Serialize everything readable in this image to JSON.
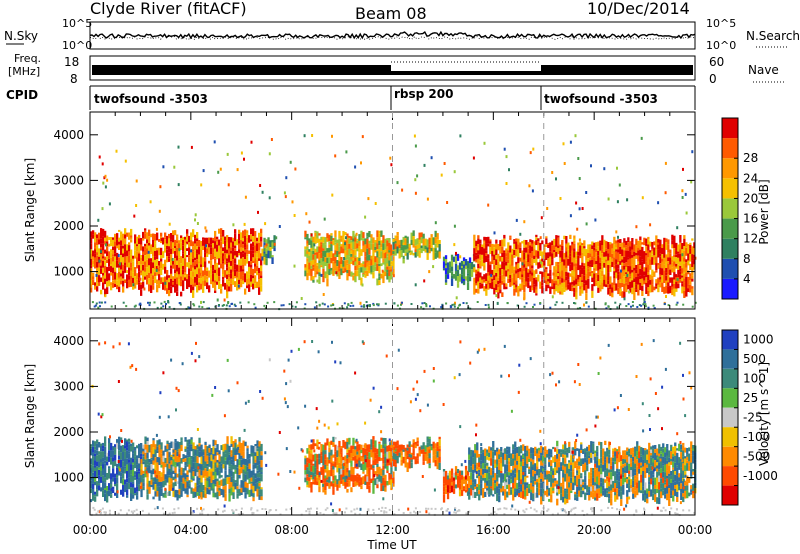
{
  "header": {
    "station": "Clyde River (fitACF)",
    "beam": "Beam 08",
    "date": "10/Dec/2014"
  },
  "noise_panel": {
    "left_label": "N.Sky",
    "right_label": "N.Search",
    "left_ticks": [
      "10^5",
      "10^0"
    ],
    "right_ticks": [
      "10^5",
      "10^0"
    ]
  },
  "freq_panel": {
    "left_label_1": "Freq.",
    "left_label_2": "[MHz]",
    "right_label": "Nave",
    "left_ticks": [
      "18",
      "8"
    ],
    "right_ticks": [
      "60",
      "0"
    ]
  },
  "cpid_panel": {
    "label": "CPID",
    "segments": [
      {
        "name": "twofsound -3503",
        "start_h": 0,
        "end_h": 12
      },
      {
        "name": "rbsp 200",
        "start_h": 12,
        "end_h": 18
      },
      {
        "name": "twofsound -3503",
        "start_h": 18,
        "end_h": 24
      }
    ]
  },
  "axes": {
    "xlabel": "Time UT",
    "x_ticks": [
      "00:00",
      "04:00",
      "08:00",
      "12:00",
      "16:00",
      "20:00",
      "00:00"
    ],
    "ylabel": "Slant Range [km]",
    "y_ticks": [
      "1000",
      "2000",
      "3000",
      "4000"
    ]
  },
  "colorbars": {
    "power": {
      "label": "Power [dB]",
      "ticks": [
        "4",
        "8",
        "12",
        "16",
        "20",
        "24",
        "28"
      ],
      "colors": [
        "#1a1aff",
        "#1f4fb0",
        "#2f8060",
        "#4a9a4a",
        "#9ac83a",
        "#f5c000",
        "#ff9800",
        "#ff5a00",
        "#e00000"
      ]
    },
    "velocity": {
      "label": "Velocity [m s^-1]",
      "ticks": [
        "1000",
        "500",
        "100",
        "25",
        "-25",
        "-100",
        "-500",
        "-1000"
      ],
      "colors": [
        "#2040c0",
        "#2f6f9a",
        "#3c8a7a",
        "#5bb840",
        "#c8c8c8",
        "#f0c000",
        "#ff8a00",
        "#ff4a00",
        "#e00000"
      ]
    }
  },
  "chart_data": [
    {
      "type": "heatmap",
      "title": "",
      "xlabel": "Time UT",
      "ylabel": "Slant Range [km]",
      "xlim": [
        0,
        24
      ],
      "ylim": [
        180,
        4500
      ],
      "colorbar": "Power [dB]",
      "regions": [
        {
          "t0": 0.0,
          "t1": 6.8,
          "r0": 650,
          "r1": 1850,
          "value": 26
        },
        {
          "t0": 6.8,
          "t1": 7.3,
          "r0": 1350,
          "r1": 1700,
          "value": 12
        },
        {
          "t0": 8.5,
          "t1": 12.0,
          "r0": 900,
          "r1": 1800,
          "value": 20
        },
        {
          "t0": 12.0,
          "t1": 13.9,
          "r0": 1400,
          "r1": 1800,
          "value": 18
        },
        {
          "t0": 14.0,
          "t1": 15.2,
          "r0": 800,
          "r1": 1300,
          "value": 10
        },
        {
          "t0": 15.2,
          "t1": 24.0,
          "r0": 600,
          "r1": 1700,
          "value": 27
        }
      ]
    },
    {
      "type": "heatmap",
      "title": "",
      "xlabel": "Time UT",
      "ylabel": "Slant Range [km]",
      "xlim": [
        0,
        24
      ],
      "ylim": [
        180,
        4500
      ],
      "colorbar": "Velocity [m s^-1]",
      "regions": [
        {
          "t0": 0.0,
          "t1": 2.0,
          "r0": 650,
          "r1": 1800,
          "value": 450
        },
        {
          "t0": 2.0,
          "t1": 6.8,
          "r0": 650,
          "r1": 1800,
          "value": 150
        },
        {
          "t0": 8.5,
          "t1": 12.0,
          "r0": 800,
          "r1": 1800,
          "value": -250
        },
        {
          "t0": 12.0,
          "t1": 13.9,
          "r0": 1300,
          "r1": 1800,
          "value": -200
        },
        {
          "t0": 14.0,
          "t1": 15.0,
          "r0": 700,
          "r1": 1200,
          "value": -300
        },
        {
          "t0": 15.0,
          "t1": 24.0,
          "r0": 600,
          "r1": 1700,
          "value": 120
        }
      ]
    }
  ]
}
